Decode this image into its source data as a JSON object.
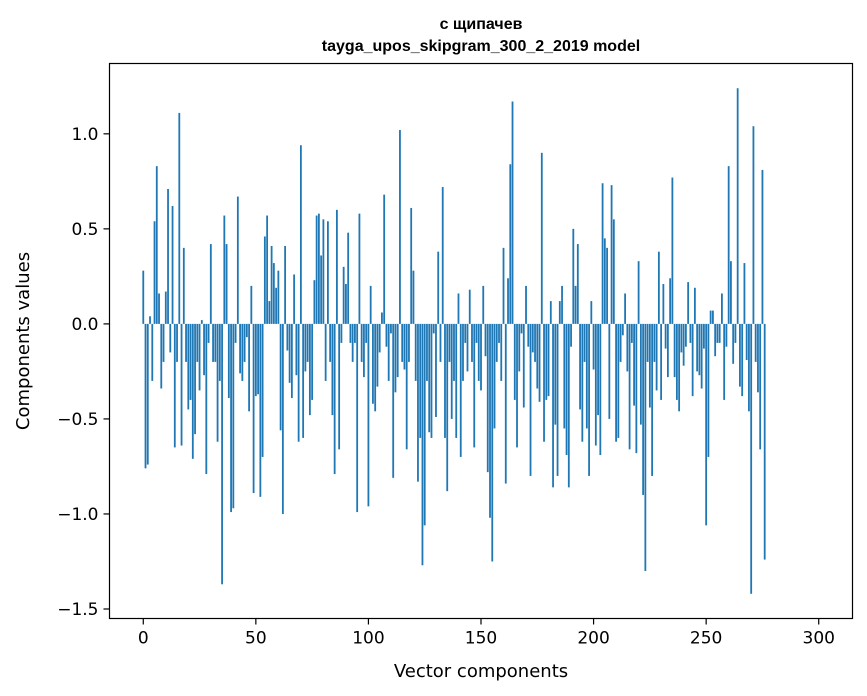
{
  "chart_data": {
    "type": "bar",
    "title": "с щипачев",
    "subtitle": "tayga_upos_skipgram_300_2_2019 model",
    "xlabel": "Vector components",
    "ylabel": "Components values",
    "xlim": [
      -15,
      315
    ],
    "ylim": [
      -1.55,
      1.37
    ],
    "xticks": [
      0,
      50,
      100,
      150,
      200,
      250,
      300
    ],
    "yticks": [
      -1.5,
      -1.0,
      -0.5,
      0.0,
      0.5,
      1.0
    ],
    "ytick_labels": [
      "−1.5",
      "−1.0",
      "−0.5",
      "0.0",
      "0.5",
      "1.0"
    ],
    "bar_color": "#1f77b4",
    "grid": false,
    "values": [
      0.28,
      -0.76,
      -0.74,
      0.04,
      -0.3,
      0.54,
      0.83,
      0.16,
      -0.34,
      -0.2,
      0.17,
      0.71,
      -0.15,
      0.62,
      -0.65,
      -0.2,
      1.11,
      -0.64,
      0.4,
      -0.2,
      -0.45,
      -0.4,
      -0.71,
      -0.58,
      -0.2,
      -0.35,
      0.02,
      -0.27,
      -0.79,
      -0.1,
      0.42,
      -0.2,
      -0.2,
      -0.62,
      -0.3,
      -1.37,
      0.57,
      0.42,
      -0.39,
      -0.99,
      -0.97,
      -0.1,
      0.67,
      -0.26,
      -0.3,
      -0.2,
      -0.07,
      -0.46,
      0.2,
      -0.89,
      -0.38,
      -0.37,
      -0.91,
      -0.7,
      0.46,
      0.57,
      0.12,
      0.41,
      0.32,
      0.19,
      0.28,
      -0.56,
      -1.0,
      0.41,
      -0.14,
      -0.31,
      -0.39,
      0.26,
      -0.27,
      -0.62,
      0.94,
      -0.6,
      -0.25,
      -0.2,
      -0.48,
      -0.4,
      0.23,
      0.57,
      0.58,
      0.36,
      0.55,
      -0.3,
      0.54,
      -0.2,
      -0.48,
      -0.79,
      0.6,
      -0.66,
      -0.1,
      0.3,
      0.21,
      0.48,
      -0.1,
      -0.2,
      -0.1,
      -0.99,
      0.58,
      -0.2,
      -0.28,
      -0.1,
      -0.96,
      0.2,
      -0.42,
      -0.46,
      -0.33,
      -0.15,
      0.06,
      0.68,
      -0.12,
      -0.3,
      -0.05,
      -0.81,
      -0.36,
      -0.28,
      1.02,
      -0.2,
      -0.24,
      -0.66,
      -0.2,
      0.61,
      0.28,
      -0.3,
      -0.83,
      -0.6,
      -1.27,
      -1.06,
      -0.3,
      -0.57,
      -0.6,
      -0.05,
      -0.49,
      0.38,
      -0.2,
      0.72,
      -0.6,
      -0.88,
      -0.2,
      -0.5,
      -0.3,
      -0.6,
      0.16,
      -0.7,
      -0.3,
      -0.1,
      -0.25,
      0.18,
      -0.2,
      -0.65,
      -0.1,
      -0.3,
      -0.35,
      0.2,
      -0.17,
      -0.78,
      -1.02,
      -1.25,
      -0.55,
      -0.2,
      -0.1,
      -0.3,
      0.4,
      -0.84,
      0.24,
      0.84,
      1.17,
      -0.4,
      -0.65,
      -0.25,
      -0.05,
      -0.44,
      0.2,
      -0.12,
      -0.8,
      -0.15,
      -0.2,
      -0.34,
      -0.41,
      0.9,
      -0.62,
      -0.4,
      -0.38,
      0.12,
      -0.86,
      -0.53,
      -0.8,
      0.12,
      0.2,
      -0.55,
      -0.69,
      -0.86,
      -0.12,
      0.5,
      0.2,
      0.42,
      -0.45,
      -0.62,
      -0.2,
      -0.55,
      -0.8,
      0.12,
      -0.24,
      -0.64,
      -0.48,
      -0.69,
      0.74,
      0.45,
      0.4,
      -0.5,
      0.73,
      0.55,
      -0.62,
      -0.6,
      -0.2,
      -0.06,
      0.16,
      -0.25,
      -0.66,
      -0.1,
      -0.43,
      -0.68,
      0.33,
      -0.53,
      -0.9,
      -1.3,
      -0.2,
      -0.44,
      -0.8,
      -0.2,
      -0.35,
      0.38,
      -0.4,
      0.21,
      -0.13,
      -0.28,
      0.24,
      0.77,
      -0.28,
      -0.4,
      -0.46,
      -0.15,
      -0.22,
      -0.12,
      0.22,
      -0.1,
      -0.38,
      0.19,
      -0.25,
      -0.27,
      -0.34,
      -0.13,
      -1.06,
      -0.7,
      0.07,
      0.07,
      -0.17,
      -0.1,
      -0.1,
      0.16,
      -0.4,
      -0.12,
      0.83,
      0.33,
      -0.21,
      -0.1,
      1.24,
      -0.33,
      -0.38,
      0.32,
      -0.19,
      -0.46,
      -1.42,
      1.04,
      -0.2,
      -0.36,
      -0.66,
      0.81,
      -1.24
    ]
  }
}
